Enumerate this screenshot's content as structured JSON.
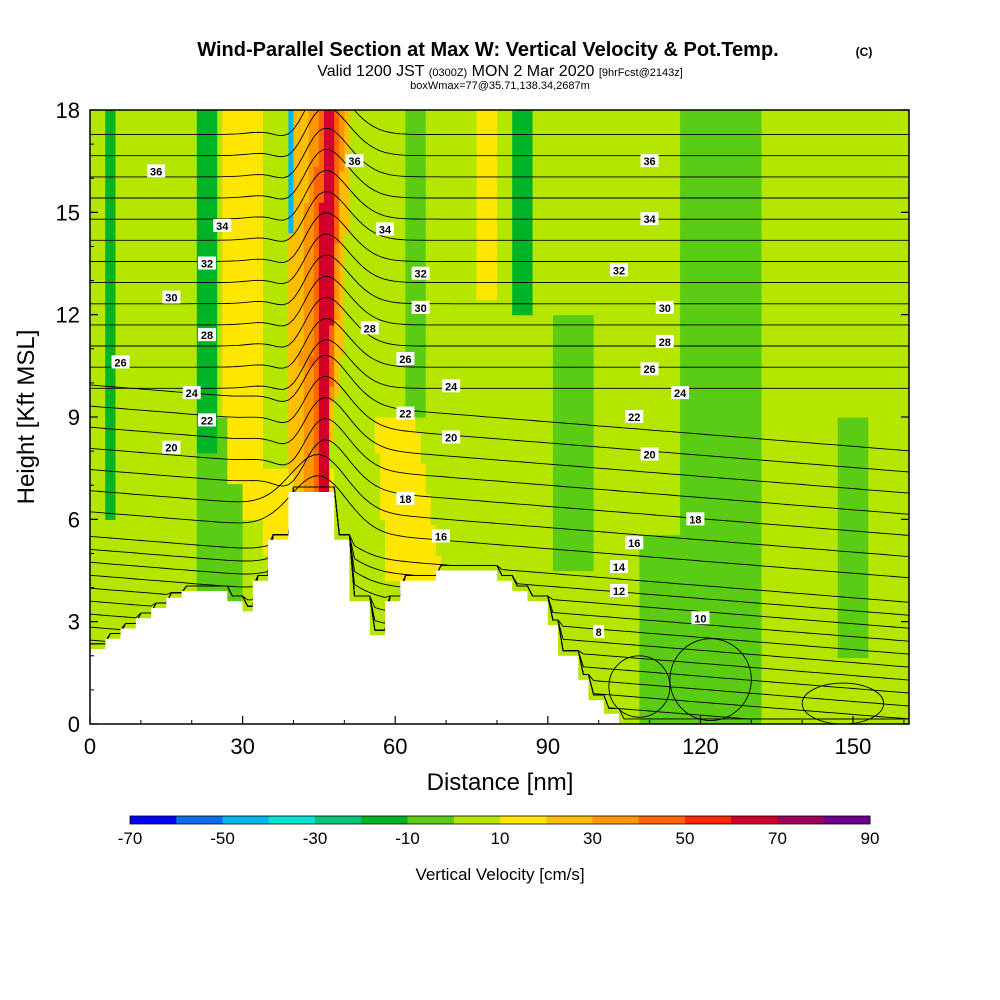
{
  "chart_data": {
    "type": "heatmap",
    "title": "Wind-Parallel Section at Max W: Vertical Velocity & Pot.Temp.",
    "title_mark": "(C)",
    "subtitle_main_a": "Valid 1200 JST",
    "subtitle_small_a": "(0300Z)",
    "subtitle_main_b": "MON 2 Mar 2020",
    "subtitle_small_b": "[9hrFcst@2143z]",
    "subtitle_line2": "boxWmax=77@35.71,138.34,2687m",
    "xlabel": "Distance [nm]",
    "ylabel": "Height [Kft MSL]",
    "xlim": [
      0,
      161
    ],
    "ylim": [
      0,
      18
    ],
    "x_ticks": [
      "0",
      "30",
      "60",
      "90",
      "120",
      "150"
    ],
    "y_ticks": [
      "0",
      "3",
      "6",
      "9",
      "12",
      "15",
      "18"
    ],
    "colorbar": {
      "label": "Vertical Velocity [cm/s]",
      "tick_labels": [
        "-70",
        "-50",
        "-30",
        "-10",
        "10",
        "30",
        "50",
        "70",
        "90"
      ],
      "colors": [
        "#0000ff",
        "#0b6fee",
        "#00b8ee",
        "#00e6d2",
        "#00c878",
        "#00b428",
        "#5acc14",
        "#b4e600",
        "#ffe600",
        "#ffbe00",
        "#ff9600",
        "#ff6400",
        "#ff2800",
        "#d20028",
        "#a0005a",
        "#6e008c"
      ]
    },
    "terrain": [
      [
        0,
        2.2
      ],
      [
        3,
        2.2
      ],
      [
        3,
        2.5
      ],
      [
        6,
        2.5
      ],
      [
        6,
        2.8
      ],
      [
        9,
        2.8
      ],
      [
        9,
        3.1
      ],
      [
        12,
        3.1
      ],
      [
        12,
        3.4
      ],
      [
        15,
        3.4
      ],
      [
        15,
        3.7
      ],
      [
        18,
        3.7
      ],
      [
        18,
        3.9
      ],
      [
        27,
        3.9
      ],
      [
        27,
        3.6
      ],
      [
        30,
        3.6
      ],
      [
        30,
        3.3
      ],
      [
        32,
        3.3
      ],
      [
        32,
        4.2
      ],
      [
        35,
        4.2
      ],
      [
        35,
        5.4
      ],
      [
        39,
        5.4
      ],
      [
        39,
        6.8
      ],
      [
        48,
        6.8
      ],
      [
        48,
        5.4
      ],
      [
        51,
        5.4
      ],
      [
        51,
        3.6
      ],
      [
        55,
        3.6
      ],
      [
        55,
        2.6
      ],
      [
        58,
        2.6
      ],
      [
        58,
        3.6
      ],
      [
        61,
        3.6
      ],
      [
        61,
        4.2
      ],
      [
        68,
        4.2
      ],
      [
        68,
        4.5
      ],
      [
        80,
        4.5
      ],
      [
        80,
        4.2
      ],
      [
        83,
        4.2
      ],
      [
        83,
        3.9
      ],
      [
        86,
        3.9
      ],
      [
        86,
        3.6
      ],
      [
        90,
        3.6
      ],
      [
        90,
        2.9
      ],
      [
        92,
        2.9
      ],
      [
        92,
        2.0
      ],
      [
        96,
        2.0
      ],
      [
        96,
        1.3
      ],
      [
        98,
        1.3
      ],
      [
        98,
        0.7
      ],
      [
        101,
        0.7
      ],
      [
        101,
        0.3
      ],
      [
        104,
        0.3
      ],
      [
        104,
        0
      ],
      [
        161,
        0
      ]
    ],
    "theta_labels": [
      {
        "x": 13,
        "y": 16.2,
        "label": "36"
      },
      {
        "x": 52,
        "y": 16.5,
        "label": "36"
      },
      {
        "x": 110,
        "y": 16.5,
        "label": "36"
      },
      {
        "x": 26,
        "y": 14.6,
        "label": "34"
      },
      {
        "x": 58,
        "y": 14.5,
        "label": "34"
      },
      {
        "x": 110,
        "y": 14.8,
        "label": "34"
      },
      {
        "x": 23,
        "y": 13.5,
        "label": "32"
      },
      {
        "x": 65,
        "y": 13.2,
        "label": "32"
      },
      {
        "x": 104,
        "y": 13.3,
        "label": "32"
      },
      {
        "x": 16,
        "y": 12.5,
        "label": "30"
      },
      {
        "x": 65,
        "y": 12.2,
        "label": "30"
      },
      {
        "x": 113,
        "y": 12.2,
        "label": "30"
      },
      {
        "x": 23,
        "y": 11.4,
        "label": "28"
      },
      {
        "x": 55,
        "y": 11.6,
        "label": "28"
      },
      {
        "x": 113,
        "y": 11.2,
        "label": "28"
      },
      {
        "x": 6,
        "y": 10.6,
        "label": "26"
      },
      {
        "x": 62,
        "y": 10.7,
        "label": "26"
      },
      {
        "x": 110,
        "y": 10.4,
        "label": "26"
      },
      {
        "x": 20,
        "y": 9.7,
        "label": "24"
      },
      {
        "x": 71,
        "y": 9.9,
        "label": "24"
      },
      {
        "x": 116,
        "y": 9.7,
        "label": "24"
      },
      {
        "x": 23,
        "y": 8.9,
        "label": "22"
      },
      {
        "x": 62,
        "y": 9.1,
        "label": "22"
      },
      {
        "x": 107,
        "y": 9.0,
        "label": "22"
      },
      {
        "x": 16,
        "y": 8.1,
        "label": "20"
      },
      {
        "x": 71,
        "y": 8.4,
        "label": "20"
      },
      {
        "x": 110,
        "y": 7.9,
        "label": "20"
      },
      {
        "x": 62,
        "y": 6.6,
        "label": "18"
      },
      {
        "x": 119,
        "y": 6.0,
        "label": "18"
      },
      {
        "x": 69,
        "y": 5.5,
        "label": "16"
      },
      {
        "x": 107,
        "y": 5.3,
        "label": "16"
      },
      {
        "x": 104,
        "y": 4.6,
        "label": "14"
      },
      {
        "x": 104,
        "y": 3.9,
        "label": "12"
      },
      {
        "x": 120,
        "y": 3.1,
        "label": "10"
      },
      {
        "x": 100,
        "y": 2.7,
        "label": "8"
      }
    ],
    "w_features": [
      {
        "name": "updraft-core",
        "level": 13,
        "x": [
          [
            46,
            9
          ],
          [
            47,
            18
          ]
        ],
        "half_width": 1.2,
        "min_height": 6.8
      },
      {
        "name": "updraft-strong",
        "level": 11,
        "x": [
          [
            45,
            7
          ],
          [
            47,
            18
          ]
        ],
        "half_width": 2.2,
        "min_height": 6.8
      },
      {
        "name": "updraft-orange",
        "level": 10,
        "x": [
          [
            44,
            7
          ],
          [
            46.5,
            18
          ]
        ],
        "half_width": 3.4,
        "min_height": 6.8
      },
      {
        "name": "updraft-yellow-core",
        "level": 9,
        "x": [
          [
            43,
            7
          ],
          [
            46,
            18
          ]
        ],
        "half_width": 5.5,
        "min_height": 6.8
      },
      {
        "name": "downdraft-cyan",
        "level": 2,
        "x": [
          [
            42,
            7
          ],
          [
            41,
            18
          ]
        ],
        "half_width": 2.2,
        "min_height": 6.8
      },
      {
        "name": "downdraft-blue",
        "level": 1,
        "x": [
          [
            42,
            9
          ],
          [
            41,
            18
          ]
        ],
        "half_width": 1.0,
        "min_height": 6.8
      }
    ]
  }
}
